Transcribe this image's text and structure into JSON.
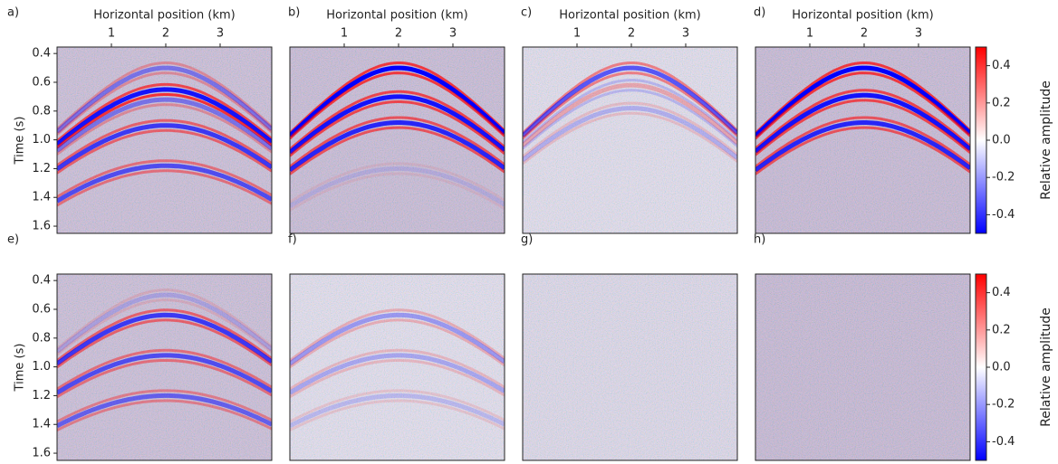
{
  "chart_data": [
    {
      "type": "heatmap",
      "label": "a)",
      "xlabel": "Horizontal position (km)",
      "xlim": [
        0,
        3.95
      ],
      "xticks": [
        1,
        2,
        3
      ],
      "ylabel": "Time (s)",
      "ylim": [
        0.355,
        1.65
      ],
      "yticks": [
        0.4,
        0.6,
        0.8,
        {
          "value": 1.0,
          "label": "1.0"
        },
        1.2,
        1.4,
        1.6
      ],
      "background": "#d8c9dc",
      "velocity": 2.5,
      "events": [
        {
          "t0": 0.5,
          "amplitude": -0.2
        },
        {
          "t0": 0.65,
          "amplitude": -0.45
        },
        {
          "t0": 0.72,
          "amplitude": -0.2
        },
        {
          "t0": 0.9,
          "amplitude": -0.35
        },
        {
          "t0": 1.18,
          "amplitude": -0.3
        }
      ]
    },
    {
      "type": "heatmap",
      "label": "b)",
      "xlabel": "Horizontal position (km)",
      "xlim": [
        0,
        3.95
      ],
      "xticks": [
        1,
        2,
        3
      ],
      "ylim": [
        0.355,
        1.65
      ],
      "background": "#d5c6da",
      "velocity": 2.4,
      "events": [
        {
          "t0": 0.5,
          "amplitude": -0.5
        },
        {
          "t0": 0.7,
          "amplitude": -0.45
        },
        {
          "t0": 0.88,
          "amplitude": -0.4
        },
        {
          "t0": 1.2,
          "amplitude": -0.05
        }
      ]
    },
    {
      "type": "heatmap",
      "label": "c)",
      "xlabel": "Horizontal position (km)",
      "xlim": [
        0,
        3.95
      ],
      "xticks": [
        1,
        2,
        3
      ],
      "ylim": [
        0.355,
        1.65
      ],
      "background": "#f0ebf2",
      "velocity": 2.4,
      "events": [
        {
          "t0": 0.5,
          "amplitude": -0.3
        },
        {
          "t0": 0.62,
          "amplitude": 0.12
        },
        {
          "t0": 0.78,
          "amplitude": -0.1
        }
      ]
    },
    {
      "type": "heatmap",
      "label": "d)",
      "xlabel": "Horizontal position (km)",
      "xlim": [
        0,
        3.95
      ],
      "xticks": [
        1,
        2,
        3
      ],
      "ylim": [
        0.355,
        1.65
      ],
      "background": "#d4c4d9",
      "velocity": 2.4,
      "events": [
        {
          "t0": 0.5,
          "amplitude": -0.5
        },
        {
          "t0": 0.69,
          "amplitude": -0.45
        },
        {
          "t0": 0.88,
          "amplitude": -0.4
        }
      ]
    },
    {
      "type": "heatmap",
      "label": "e)",
      "xlim": [
        0,
        3.95
      ],
      "ylabel": "Time (s)",
      "ylim": [
        0.355,
        1.65
      ],
      "yticks": [
        0.4,
        0.6,
        0.8,
        {
          "value": 1.0,
          "label": "1.0"
        },
        1.2,
        1.4,
        1.6
      ],
      "background": "#d8c9dc",
      "velocity": 2.7,
      "events": [
        {
          "t0": 0.5,
          "amplitude": -0.08
        },
        {
          "t0": 0.64,
          "amplitude": -0.35
        },
        {
          "t0": 0.92,
          "amplitude": -0.3
        },
        {
          "t0": 1.2,
          "amplitude": -0.25
        }
      ]
    },
    {
      "type": "heatmap",
      "label": "f)",
      "xlim": [
        0,
        3.95
      ],
      "ylim": [
        0.355,
        1.65
      ],
      "background": "#f1ecf3",
      "velocity": 2.7,
      "events": [
        {
          "t0": 0.64,
          "amplitude": -0.15
        },
        {
          "t0": 0.92,
          "amplitude": -0.12
        },
        {
          "t0": 1.2,
          "amplitude": -0.08
        }
      ]
    },
    {
      "type": "heatmap",
      "label": "g)",
      "xlim": [
        0,
        3.95
      ],
      "ylim": [
        0.355,
        1.65
      ],
      "background": "#ebe5ee",
      "velocity": 2.4,
      "events": []
    },
    {
      "type": "heatmap",
      "label": "h)",
      "xlim": [
        0,
        3.95
      ],
      "ylim": [
        0.355,
        1.65
      ],
      "background": "#d3c3d8",
      "velocity": 2.4,
      "events": []
    },
    {
      "type": "colorbar",
      "ylabel": "Relative amplitude",
      "ylim": [
        -0.5,
        0.5
      ],
      "yticks": [
        -0.4,
        -0.2,
        {
          "value": 0,
          "label": "0.0"
        },
        0.2,
        0.4
      ],
      "colors": [
        "#0000ff",
        "#ffffff",
        "#ff0000"
      ]
    },
    {
      "type": "colorbar",
      "ylabel": "Relative amplitude",
      "ylim": [
        -0.5,
        0.5
      ],
      "yticks": [
        -0.4,
        -0.2,
        {
          "value": 0,
          "label": "0.0"
        },
        0.2,
        0.4
      ],
      "colors": [
        "#0000ff",
        "#ffffff",
        "#ff0000"
      ]
    }
  ]
}
